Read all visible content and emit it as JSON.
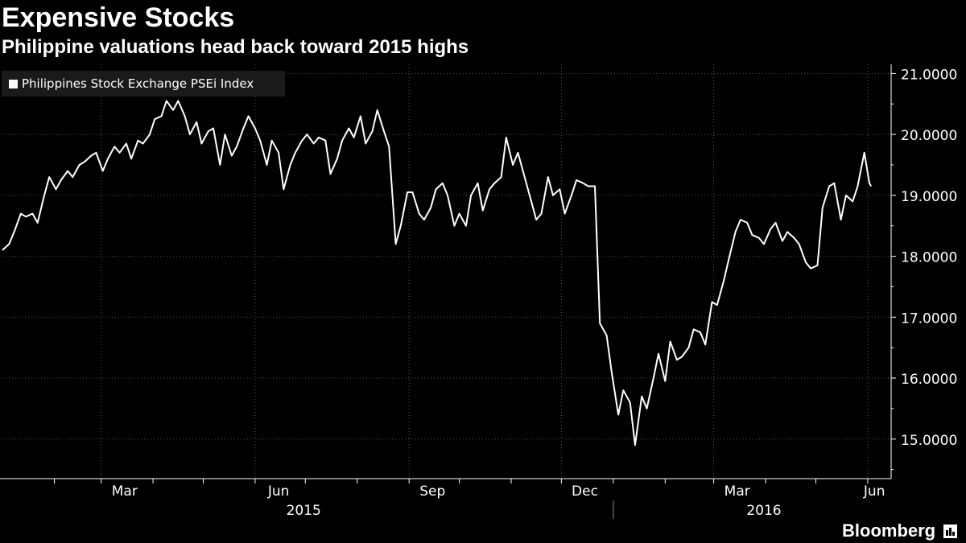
{
  "header": {
    "title": "Expensive Stocks",
    "subtitle": "Philippine valuations head back toward 2015 highs"
  },
  "logo": {
    "text": "Bloomberg",
    "mark_icon": "bloomberg-bars-icon"
  },
  "colors": {
    "background": "#000000",
    "line": "#ffffff",
    "grid": "#555555",
    "text": "#ffffff",
    "legend_bg": "#1a1a1a"
  },
  "chart_data": {
    "type": "line",
    "title": "Expensive Stocks",
    "subtitle": "Philippine valuations head back toward 2015 highs",
    "legend": {
      "position": "top-left",
      "entries": [
        "Philippines Stock Exchange PSEi Index"
      ]
    },
    "grid": true,
    "x_axis": {
      "type": "date",
      "range": [
        "2015-01-01",
        "2016-06-15"
      ],
      "month_labels": [
        {
          "label": "Mar",
          "date": "2015-03-15"
        },
        {
          "label": "Jun",
          "date": "2015-06-15"
        },
        {
          "label": "Sep",
          "date": "2015-09-15"
        },
        {
          "label": "Dec",
          "date": "2015-12-15"
        },
        {
          "label": "Mar",
          "date": "2016-03-15"
        },
        {
          "label": "Jun",
          "date": "2016-06-05"
        }
      ],
      "year_labels": [
        {
          "label": "2015",
          "date": "2015-06-30"
        },
        {
          "label": "2016",
          "date": "2016-03-31"
        }
      ]
    },
    "y_axis": {
      "position": "right",
      "ylim": [
        14.35,
        21.15
      ],
      "ticks": [
        15,
        16,
        17,
        18,
        19,
        20,
        21
      ],
      "tick_labels": [
        "15.0000",
        "16.0000",
        "17.0000",
        "18.0000",
        "19.0000",
        "20.0000",
        "21.0000"
      ]
    },
    "series": [
      {
        "name": "Philippines Stock Exchange PSEi Index",
        "color": "#ffffff",
        "points": [
          [
            "2015-01-01",
            18.1
          ],
          [
            "2015-01-05",
            18.2
          ],
          [
            "2015-01-08",
            18.4
          ],
          [
            "2015-01-12",
            18.7
          ],
          [
            "2015-01-15",
            18.65
          ],
          [
            "2015-01-19",
            18.7
          ],
          [
            "2015-01-22",
            18.55
          ],
          [
            "2015-01-26",
            19.0
          ],
          [
            "2015-01-29",
            19.3
          ],
          [
            "2015-02-02",
            19.1
          ],
          [
            "2015-02-05",
            19.25
          ],
          [
            "2015-02-09",
            19.4
          ],
          [
            "2015-02-12",
            19.3
          ],
          [
            "2015-02-16",
            19.5
          ],
          [
            "2015-02-19",
            19.55
          ],
          [
            "2015-02-23",
            19.65
          ],
          [
            "2015-02-26",
            19.7
          ],
          [
            "2015-03-02",
            19.4
          ],
          [
            "2015-03-05",
            19.6
          ],
          [
            "2015-03-09",
            19.8
          ],
          [
            "2015-03-12",
            19.7
          ],
          [
            "2015-03-16",
            19.85
          ],
          [
            "2015-03-19",
            19.6
          ],
          [
            "2015-03-23",
            19.9
          ],
          [
            "2015-03-26",
            19.85
          ],
          [
            "2015-03-30",
            20.0
          ],
          [
            "2015-04-02",
            20.25
          ],
          [
            "2015-04-06",
            20.3
          ],
          [
            "2015-04-09",
            20.55
          ],
          [
            "2015-04-13",
            20.4
          ],
          [
            "2015-04-16",
            20.55
          ],
          [
            "2015-04-20",
            20.3
          ],
          [
            "2015-04-23",
            20.0
          ],
          [
            "2015-04-27",
            20.2
          ],
          [
            "2015-04-30",
            19.85
          ],
          [
            "2015-05-04",
            20.05
          ],
          [
            "2015-05-07",
            20.1
          ],
          [
            "2015-05-11",
            19.5
          ],
          [
            "2015-05-14",
            20.0
          ],
          [
            "2015-05-18",
            19.65
          ],
          [
            "2015-05-21",
            19.8
          ],
          [
            "2015-05-25",
            20.1
          ],
          [
            "2015-05-28",
            20.3
          ],
          [
            "2015-06-01",
            20.1
          ],
          [
            "2015-06-04",
            19.9
          ],
          [
            "2015-06-08",
            19.5
          ],
          [
            "2015-06-11",
            19.9
          ],
          [
            "2015-06-15",
            19.7
          ],
          [
            "2015-06-18",
            19.1
          ],
          [
            "2015-06-22",
            19.5
          ],
          [
            "2015-06-25",
            19.7
          ],
          [
            "2015-06-29",
            19.9
          ],
          [
            "2015-07-02",
            20.0
          ],
          [
            "2015-07-06",
            19.85
          ],
          [
            "2015-07-09",
            19.95
          ],
          [
            "2015-07-13",
            19.9
          ],
          [
            "2015-07-16",
            19.35
          ],
          [
            "2015-07-20",
            19.6
          ],
          [
            "2015-07-23",
            19.9
          ],
          [
            "2015-07-27",
            20.1
          ],
          [
            "2015-07-30",
            19.95
          ],
          [
            "2015-08-03",
            20.3
          ],
          [
            "2015-08-06",
            19.85
          ],
          [
            "2015-08-10",
            20.05
          ],
          [
            "2015-08-13",
            20.4
          ],
          [
            "2015-08-17",
            20.05
          ],
          [
            "2015-08-20",
            19.8
          ],
          [
            "2015-08-24",
            18.2
          ],
          [
            "2015-08-27",
            18.5
          ],
          [
            "2015-08-31",
            19.05
          ],
          [
            "2015-09-03",
            19.05
          ],
          [
            "2015-09-07",
            18.7
          ],
          [
            "2015-09-10",
            18.6
          ],
          [
            "2015-09-14",
            18.8
          ],
          [
            "2015-09-17",
            19.1
          ],
          [
            "2015-09-21",
            19.2
          ],
          [
            "2015-09-24",
            19.0
          ],
          [
            "2015-09-28",
            18.5
          ],
          [
            "2015-10-01",
            18.7
          ],
          [
            "2015-10-05",
            18.5
          ],
          [
            "2015-10-08",
            19.0
          ],
          [
            "2015-10-12",
            19.2
          ],
          [
            "2015-10-15",
            18.75
          ],
          [
            "2015-10-19",
            19.1
          ],
          [
            "2015-10-22",
            19.2
          ],
          [
            "2015-10-26",
            19.3
          ],
          [
            "2015-10-29",
            19.95
          ],
          [
            "2015-11-02",
            19.5
          ],
          [
            "2015-11-05",
            19.7
          ],
          [
            "2015-11-09",
            19.3
          ],
          [
            "2015-11-12",
            19.0
          ],
          [
            "2015-11-16",
            18.6
          ],
          [
            "2015-11-19",
            18.7
          ],
          [
            "2015-11-23",
            19.3
          ],
          [
            "2015-11-26",
            19.0
          ],
          [
            "2015-11-30",
            19.1
          ],
          [
            "2015-12-03",
            18.7
          ],
          [
            "2015-12-07",
            19.0
          ],
          [
            "2015-12-10",
            19.25
          ],
          [
            "2015-12-14",
            19.2
          ],
          [
            "2015-12-17",
            19.15
          ],
          [
            "2015-12-21",
            19.15
          ],
          [
            "2015-12-24",
            16.9
          ],
          [
            "2015-12-28",
            16.7
          ],
          [
            "2015-12-31",
            16.1
          ],
          [
            "2016-01-04",
            15.4
          ],
          [
            "2016-01-07",
            15.8
          ],
          [
            "2016-01-11",
            15.6
          ],
          [
            "2016-01-14",
            14.9
          ],
          [
            "2016-01-18",
            15.7
          ],
          [
            "2016-01-21",
            15.5
          ],
          [
            "2016-01-25",
            16.0
          ],
          [
            "2016-01-28",
            16.4
          ],
          [
            "2016-02-01",
            15.95
          ],
          [
            "2016-02-04",
            16.6
          ],
          [
            "2016-02-08",
            16.3
          ],
          [
            "2016-02-11",
            16.35
          ],
          [
            "2016-02-15",
            16.5
          ],
          [
            "2016-02-18",
            16.8
          ],
          [
            "2016-02-22",
            16.75
          ],
          [
            "2016-02-25",
            16.55
          ],
          [
            "2016-02-29",
            17.25
          ],
          [
            "2016-03-03",
            17.2
          ],
          [
            "2016-03-07",
            17.6
          ],
          [
            "2016-03-10",
            17.95
          ],
          [
            "2016-03-14",
            18.4
          ],
          [
            "2016-03-17",
            18.6
          ],
          [
            "2016-03-21",
            18.55
          ],
          [
            "2016-03-24",
            18.35
          ],
          [
            "2016-03-28",
            18.3
          ],
          [
            "2016-03-31",
            18.2
          ],
          [
            "2016-04-04",
            18.45
          ],
          [
            "2016-04-07",
            18.55
          ],
          [
            "2016-04-11",
            18.25
          ],
          [
            "2016-04-14",
            18.4
          ],
          [
            "2016-04-18",
            18.3
          ],
          [
            "2016-04-21",
            18.2
          ],
          [
            "2016-04-25",
            17.9
          ],
          [
            "2016-04-28",
            17.8
          ],
          [
            "2016-05-02",
            17.85
          ],
          [
            "2016-05-05",
            18.8
          ],
          [
            "2016-05-09",
            19.15
          ],
          [
            "2016-05-12",
            19.2
          ],
          [
            "2016-05-16",
            18.6
          ],
          [
            "2016-05-19",
            19.0
          ],
          [
            "2016-05-23",
            18.9
          ],
          [
            "2016-05-26",
            19.15
          ],
          [
            "2016-05-30",
            19.7
          ],
          [
            "2016-06-02",
            19.2
          ],
          [
            "2016-06-03",
            19.15
          ]
        ]
      }
    ]
  }
}
